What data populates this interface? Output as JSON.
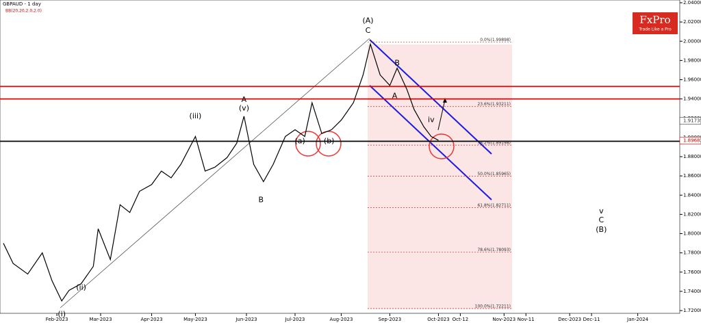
{
  "chart_data": {
    "type": "line",
    "title": "GBPAUD - 1 day",
    "subtitle": "BB(20,20,2.0,2.0)",
    "brand": "FxPro",
    "tagline": "Trade Like a Pro",
    "xlim": [
      -23.4,
      256.3
    ],
    "ylim": [
      1.72,
      2.04
    ],
    "xticks": [
      {
        "value": 0,
        "label": "Feb-2023"
      },
      {
        "value": 18,
        "label": "Mar-2023"
      },
      {
        "value": 39,
        "label": "Apr-2023"
      },
      {
        "value": 57,
        "label": "May-2023"
      },
      {
        "value": 78,
        "label": "Jun-2023"
      },
      {
        "value": 98,
        "label": "Jul-2023"
      },
      {
        "value": 117,
        "label": "Aug-2023"
      },
      {
        "value": 137,
        "label": "Sep-2023"
      },
      {
        "value": 157,
        "label": "Oct-2023"
      },
      {
        "value": 166,
        "label": "Oct-12"
      },
      {
        "value": 184,
        "label": "Nov-2023"
      },
      {
        "value": 193,
        "label": "Nov-11"
      },
      {
        "value": 211,
        "label": "Dec-2023"
      },
      {
        "value": 220,
        "label": "Dec-11"
      },
      {
        "value": 239,
        "label": "Jan-2024"
      }
    ],
    "yticks": [
      {
        "value": 1.72,
        "label": "1.72000"
      },
      {
        "value": 1.74,
        "label": "1.74000"
      },
      {
        "value": 1.76,
        "label": "1.76000"
      },
      {
        "value": 1.78,
        "label": "1.78000"
      },
      {
        "value": 1.8,
        "label": "1.80000"
      },
      {
        "value": 1.82,
        "label": "1.82000"
      },
      {
        "value": 1.84,
        "label": "1.84000"
      },
      {
        "value": 1.86,
        "label": "1.86000"
      },
      {
        "value": 1.88,
        "label": "1.88000"
      },
      {
        "value": 1.9,
        "label": "1.90000"
      },
      {
        "value": 1.92,
        "label": "1.92000"
      },
      {
        "value": 1.94,
        "label": "1.94000"
      },
      {
        "value": 1.96,
        "label": "1.96000"
      },
      {
        "value": 1.98,
        "label": "1.98000"
      },
      {
        "value": 2.0,
        "label": "2.00000"
      },
      {
        "value": 2.02,
        "label": "2.02000"
      },
      {
        "value": 2.04,
        "label": "2.04000"
      }
    ],
    "price_markers": [
      {
        "value": 1.91735,
        "label": "1.91735",
        "color": "#333333"
      },
      {
        "value": 1.89682,
        "label": "1.89682",
        "color": "#cc0000"
      }
    ],
    "x": [
      -22,
      -18,
      -12,
      -6,
      -2,
      2,
      5,
      10,
      15,
      17,
      22,
      26,
      30,
      34,
      39,
      43,
      47,
      51,
      57,
      61,
      65,
      70,
      74,
      77,
      81,
      85,
      89,
      94,
      98,
      102,
      105,
      109,
      113,
      117,
      122,
      126,
      129,
      133,
      137,
      140,
      144,
      147,
      151,
      154,
      157
    ],
    "series": [
      {
        "name": "GBPAUD",
        "color": "#000000",
        "values": [
          1.79,
          1.769,
          1.758,
          1.78,
          1.751,
          1.73,
          1.741,
          1.748,
          1.766,
          1.805,
          1.773,
          1.83,
          1.822,
          1.844,
          1.851,
          1.865,
          1.858,
          1.872,
          1.901,
          1.865,
          1.869,
          1.879,
          1.894,
          1.922,
          1.872,
          1.854,
          1.872,
          1.901,
          1.908,
          1.901,
          1.936,
          1.904,
          1.908,
          1.918,
          1.936,
          1.965,
          1.997,
          1.965,
          1.954,
          1.972,
          1.95,
          1.929,
          1.911,
          1.901,
          1.897
        ]
      }
    ],
    "fib_levels": [
      {
        "value": 1.99898,
        "label": "0.0%(1.99898)"
      },
      {
        "value": 1.93211,
        "label": "23.6%(1.93211)"
      },
      {
        "value": 1.89198,
        "label": "38.2%(1.89198)"
      },
      {
        "value": 1.85965,
        "label": "50.0%(1.85965)"
      },
      {
        "value": 1.82711,
        "label": "61.8%(1.82711)"
      },
      {
        "value": 1.78093,
        "label": "78.6%(1.78093)"
      },
      {
        "value": 1.72211,
        "label": "100.0%(1.72211)"
      }
    ],
    "levels": [
      {
        "value": 1.953,
        "color": "#e00000"
      },
      {
        "value": 1.94,
        "color": "#e00000"
      },
      {
        "value": 1.896,
        "color": "#000000"
      }
    ],
    "annotations": [
      {
        "text": "(A)",
        "x": 128,
        "y": 2.021
      },
      {
        "text": "C",
        "x": 128,
        "y": 2.011
      },
      {
        "text": "A",
        "x": 77,
        "y": 1.939
      },
      {
        "text": "B",
        "x": 84,
        "y": 1.835
      },
      {
        "text": "B",
        "x": 140,
        "y": 1.977
      },
      {
        "text": "A",
        "x": 139,
        "y": 1.943
      },
      {
        "text": "(iii)",
        "x": 57,
        "y": 1.922
      },
      {
        "text": "(v)",
        "x": 77,
        "y": 1.93
      },
      {
        "text": "(a)",
        "x": 100,
        "y": 1.896
      },
      {
        "text": "(b)",
        "x": 112,
        "y": 1.896
      },
      {
        "text": "(i)",
        "x": 2,
        "y": 1.716
      },
      {
        "text": "(ii)",
        "x": 10,
        "y": 1.744
      },
      {
        "text": "iv",
        "x": 154,
        "y": 1.918
      },
      {
        "text": "v",
        "x": 224,
        "y": 1.823
      },
      {
        "text": "C",
        "x": 224,
        "y": 1.814
      },
      {
        "text": "(B)",
        "x": 224,
        "y": 1.804
      }
    ]
  }
}
